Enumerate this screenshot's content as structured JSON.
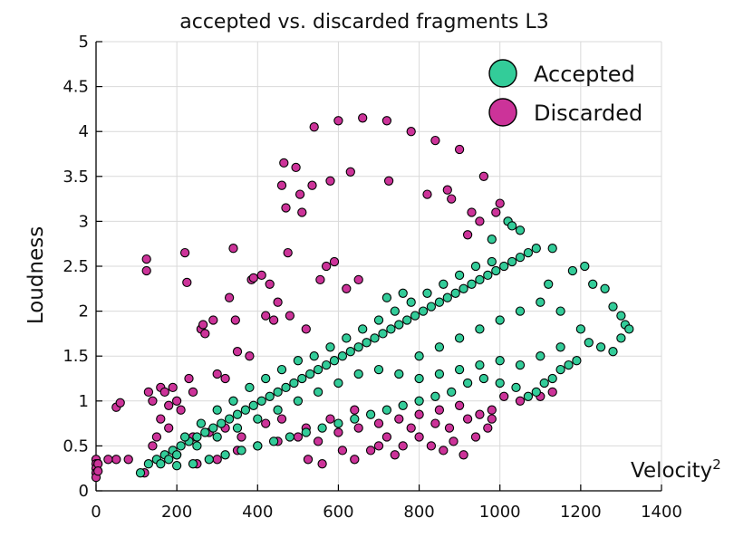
{
  "chart_data": {
    "type": "scatter",
    "title": "accepted vs. discarded fragments L3",
    "xlabel": "Velocity",
    "xlabel_superscript": "2",
    "ylabel": "Loudness",
    "xlim": [
      0,
      1400
    ],
    "ylim": [
      0,
      5
    ],
    "x_ticks": [
      "0",
      "200",
      "400",
      "600",
      "800",
      "1000",
      "1200",
      "1400"
    ],
    "y_ticks": [
      "0",
      "0.5",
      "1",
      "1.5",
      "2",
      "2.5",
      "3",
      "3.5",
      "4",
      "4.5",
      "5"
    ],
    "grid": true,
    "legend_position": "top-right",
    "series": [
      {
        "name": "Discarded",
        "color": "#cc3399",
        "points": [
          [
            0,
            0.35
          ],
          [
            0,
            0.3
          ],
          [
            0,
            0.25
          ],
          [
            0,
            0.2
          ],
          [
            0,
            0.15
          ],
          [
            5,
            0.3
          ],
          [
            5,
            0.22
          ],
          [
            50,
            0.35
          ],
          [
            50,
            0.93
          ],
          [
            60,
            0.98
          ],
          [
            30,
            0.35
          ],
          [
            80,
            0.35
          ],
          [
            120,
            0.2
          ],
          [
            125,
            2.58
          ],
          [
            125,
            2.45
          ],
          [
            130,
            1.1
          ],
          [
            140,
            1.0
          ],
          [
            150,
            0.6
          ],
          [
            160,
            1.15
          ],
          [
            170,
            1.1
          ],
          [
            180,
            0.95
          ],
          [
            190,
            1.15
          ],
          [
            200,
            1.0
          ],
          [
            210,
            0.9
          ],
          [
            220,
            2.65
          ],
          [
            225,
            2.32
          ],
          [
            230,
            1.25
          ],
          [
            240,
            1.1
          ],
          [
            260,
            1.8
          ],
          [
            265,
            1.85
          ],
          [
            270,
            1.75
          ],
          [
            290,
            1.9
          ],
          [
            300,
            1.3
          ],
          [
            320,
            1.25
          ],
          [
            330,
            2.15
          ],
          [
            340,
            2.7
          ],
          [
            345,
            1.9
          ],
          [
            350,
            1.55
          ],
          [
            380,
            1.5
          ],
          [
            385,
            2.35
          ],
          [
            390,
            2.37
          ],
          [
            410,
            2.4
          ],
          [
            420,
            1.95
          ],
          [
            430,
            2.3
          ],
          [
            440,
            1.9
          ],
          [
            450,
            2.1
          ],
          [
            460,
            3.4
          ],
          [
            465,
            3.65
          ],
          [
            470,
            3.15
          ],
          [
            475,
            2.65
          ],
          [
            480,
            1.95
          ],
          [
            495,
            3.6
          ],
          [
            505,
            3.3
          ],
          [
            510,
            3.1
          ],
          [
            520,
            1.8
          ],
          [
            525,
            0.35
          ],
          [
            535,
            3.4
          ],
          [
            540,
            4.05
          ],
          [
            555,
            2.35
          ],
          [
            560,
            0.3
          ],
          [
            570,
            2.5
          ],
          [
            580,
            3.45
          ],
          [
            590,
            2.55
          ],
          [
            600,
            4.12
          ],
          [
            610,
            0.45
          ],
          [
            620,
            2.25
          ],
          [
            630,
            3.55
          ],
          [
            640,
            0.35
          ],
          [
            650,
            2.35
          ],
          [
            660,
            4.15
          ],
          [
            680,
            0.45
          ],
          [
            700,
            0.5
          ],
          [
            720,
            4.12
          ],
          [
            725,
            3.45
          ],
          [
            740,
            0.4
          ],
          [
            760,
            0.5
          ],
          [
            780,
            4.0
          ],
          [
            800,
            0.6
          ],
          [
            820,
            3.3
          ],
          [
            830,
            0.5
          ],
          [
            840,
            3.9
          ],
          [
            860,
            0.45
          ],
          [
            870,
            3.35
          ],
          [
            875,
            0.7
          ],
          [
            880,
            3.25
          ],
          [
            885,
            0.55
          ],
          [
            900,
            3.8
          ],
          [
            910,
            0.4
          ],
          [
            920,
            2.85
          ],
          [
            930,
            3.1
          ],
          [
            940,
            0.6
          ],
          [
            950,
            3.0
          ],
          [
            960,
            3.5
          ],
          [
            970,
            0.7
          ],
          [
            980,
            0.8
          ],
          [
            990,
            3.1
          ],
          [
            1000,
            3.2
          ],
          [
            1010,
            1.05
          ],
          [
            1020,
            3.0
          ],
          [
            1050,
            1.0
          ],
          [
            1100,
            1.05
          ],
          [
            1130,
            1.1
          ],
          [
            200,
            0.4
          ],
          [
            250,
            0.3
          ],
          [
            300,
            0.35
          ],
          [
            350,
            0.45
          ],
          [
            400,
            0.5
          ],
          [
            450,
            0.55
          ],
          [
            500,
            0.6
          ],
          [
            550,
            0.55
          ],
          [
            600,
            0.65
          ],
          [
            650,
            0.7
          ],
          [
            700,
            0.75
          ],
          [
            750,
            0.8
          ],
          [
            800,
            0.85
          ],
          [
            850,
            0.9
          ],
          [
            900,
            0.95
          ],
          [
            950,
            0.85
          ],
          [
            180,
            0.7
          ],
          [
            160,
            0.8
          ],
          [
            140,
            0.5
          ],
          [
            240,
            0.6
          ],
          [
            280,
            0.65
          ],
          [
            320,
            0.7
          ],
          [
            360,
            0.6
          ],
          [
            420,
            0.75
          ],
          [
            460,
            0.8
          ],
          [
            520,
            0.7
          ],
          [
            580,
            0.8
          ],
          [
            640,
            0.9
          ],
          [
            720,
            0.6
          ],
          [
            780,
            0.7
          ],
          [
            840,
            0.75
          ],
          [
            920,
            0.8
          ],
          [
            980,
            0.9
          ]
        ]
      },
      {
        "name": "Accepted",
        "color": "#33cc99",
        "points": [
          [
            110,
            0.2
          ],
          [
            130,
            0.3
          ],
          [
            150,
            0.35
          ],
          [
            170,
            0.4
          ],
          [
            190,
            0.45
          ],
          [
            210,
            0.5
          ],
          [
            230,
            0.55
          ],
          [
            250,
            0.6
          ],
          [
            270,
            0.65
          ],
          [
            290,
            0.7
          ],
          [
            310,
            0.75
          ],
          [
            330,
            0.8
          ],
          [
            350,
            0.85
          ],
          [
            370,
            0.9
          ],
          [
            390,
            0.95
          ],
          [
            410,
            1.0
          ],
          [
            430,
            1.05
          ],
          [
            450,
            1.1
          ],
          [
            470,
            1.15
          ],
          [
            490,
            1.2
          ],
          [
            510,
            1.25
          ],
          [
            530,
            1.3
          ],
          [
            550,
            1.35
          ],
          [
            570,
            1.4
          ],
          [
            590,
            1.45
          ],
          [
            610,
            1.5
          ],
          [
            630,
            1.55
          ],
          [
            650,
            1.6
          ],
          [
            670,
            1.65
          ],
          [
            690,
            1.7
          ],
          [
            710,
            1.75
          ],
          [
            730,
            1.8
          ],
          [
            750,
            1.85
          ],
          [
            770,
            1.9
          ],
          [
            790,
            1.95
          ],
          [
            810,
            2.0
          ],
          [
            830,
            2.05
          ],
          [
            850,
            2.1
          ],
          [
            870,
            2.15
          ],
          [
            890,
            2.2
          ],
          [
            910,
            2.25
          ],
          [
            930,
            2.3
          ],
          [
            950,
            2.35
          ],
          [
            970,
            2.4
          ],
          [
            990,
            2.45
          ],
          [
            1010,
            2.5
          ],
          [
            1030,
            2.55
          ],
          [
            1050,
            2.6
          ],
          [
            1070,
            2.65
          ],
          [
            1090,
            2.7
          ],
          [
            1020,
            3.0
          ],
          [
            1030,
            2.95
          ],
          [
            1050,
            2.9
          ],
          [
            980,
            2.8
          ],
          [
            1130,
            2.7
          ],
          [
            1120,
            2.3
          ],
          [
            1150,
            2.0
          ],
          [
            1180,
            2.45
          ],
          [
            1210,
            2.5
          ],
          [
            1230,
            2.3
          ],
          [
            1260,
            2.25
          ],
          [
            1280,
            2.05
          ],
          [
            1300,
            1.95
          ],
          [
            1310,
            1.85
          ],
          [
            1320,
            1.8
          ],
          [
            1300,
            1.7
          ],
          [
            1280,
            1.55
          ],
          [
            1250,
            1.6
          ],
          [
            1220,
            1.65
          ],
          [
            1200,
            1.8
          ],
          [
            1190,
            1.45
          ],
          [
            1170,
            1.4
          ],
          [
            1150,
            1.35
          ],
          [
            1130,
            1.25
          ],
          [
            1110,
            1.2
          ],
          [
            1090,
            1.1
          ],
          [
            1070,
            1.05
          ],
          [
            1040,
            1.15
          ],
          [
            1000,
            1.2
          ],
          [
            960,
            1.25
          ],
          [
            920,
            1.2
          ],
          [
            880,
            1.1
          ],
          [
            840,
            1.05
          ],
          [
            800,
            1.0
          ],
          [
            760,
            0.95
          ],
          [
            720,
            0.9
          ],
          [
            680,
            0.85
          ],
          [
            640,
            0.8
          ],
          [
            600,
            0.75
          ],
          [
            560,
            0.7
          ],
          [
            520,
            0.65
          ],
          [
            480,
            0.6
          ],
          [
            440,
            0.55
          ],
          [
            400,
            0.5
          ],
          [
            360,
            0.45
          ],
          [
            320,
            0.4
          ],
          [
            280,
            0.35
          ],
          [
            240,
            0.3
          ],
          [
            200,
            0.28
          ],
          [
            220,
            0.6
          ],
          [
            260,
            0.75
          ],
          [
            300,
            0.9
          ],
          [
            340,
            1.0
          ],
          [
            380,
            1.15
          ],
          [
            420,
            1.25
          ],
          [
            460,
            1.35
          ],
          [
            500,
            1.45
          ],
          [
            540,
            1.5
          ],
          [
            580,
            1.6
          ],
          [
            620,
            1.7
          ],
          [
            660,
            1.8
          ],
          [
            700,
            1.9
          ],
          [
            740,
            2.0
          ],
          [
            780,
            2.1
          ],
          [
            820,
            2.2
          ],
          [
            860,
            2.3
          ],
          [
            900,
            2.4
          ],
          [
            940,
            2.5
          ],
          [
            980,
            2.55
          ],
          [
            760,
            2.2
          ],
          [
            720,
            2.15
          ],
          [
            800,
            1.5
          ],
          [
            850,
            1.6
          ],
          [
            900,
            1.7
          ],
          [
            950,
            1.8
          ],
          [
            1000,
            1.9
          ],
          [
            1050,
            2.0
          ],
          [
            1100,
            2.1
          ],
          [
            1150,
            1.6
          ],
          [
            1100,
            1.5
          ],
          [
            1050,
            1.4
          ],
          [
            1000,
            1.45
          ],
          [
            950,
            1.4
          ],
          [
            900,
            1.35
          ],
          [
            850,
            1.3
          ],
          [
            800,
            1.25
          ],
          [
            750,
            1.3
          ],
          [
            700,
            1.35
          ],
          [
            650,
            1.3
          ],
          [
            600,
            1.2
          ],
          [
            550,
            1.1
          ],
          [
            500,
            1.0
          ],
          [
            450,
            0.9
          ],
          [
            400,
            0.8
          ],
          [
            350,
            0.7
          ],
          [
            300,
            0.6
          ],
          [
            250,
            0.5
          ],
          [
            200,
            0.4
          ],
          [
            180,
            0.35
          ],
          [
            160,
            0.3
          ]
        ]
      }
    ]
  }
}
